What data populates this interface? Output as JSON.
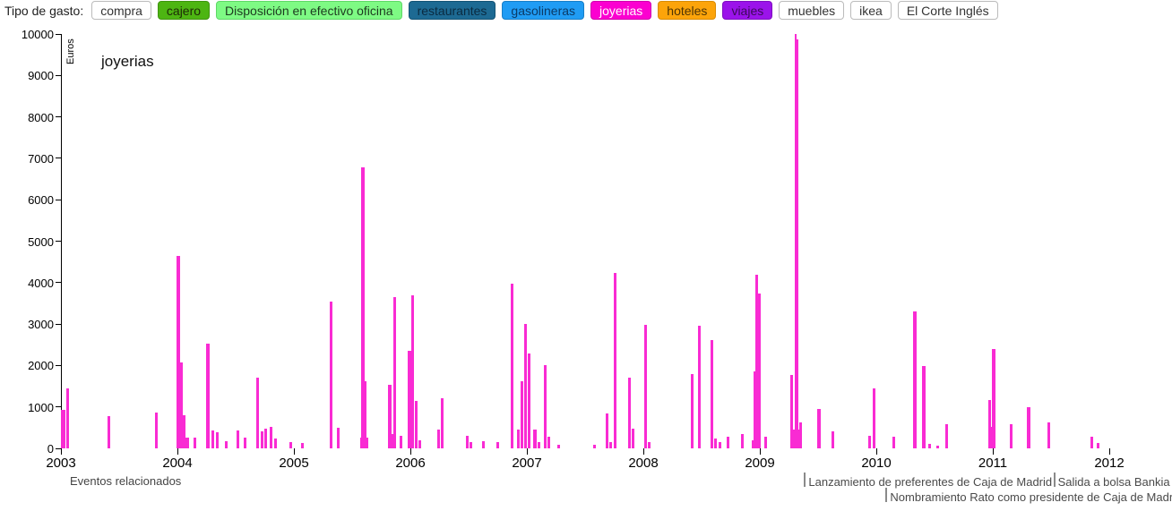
{
  "toolbar": {
    "label": "Tipo de gasto:",
    "buttons": [
      {
        "label": "compra",
        "bg": "#ffffff",
        "fg": "#333333",
        "border": "#bbbbbb"
      },
      {
        "label": "cajero",
        "bg": "#4db512",
        "fg": "#1d2a07",
        "border": "#3f9410"
      },
      {
        "label": "Disposición en efectivo oficina",
        "bg": "#7efa84",
        "fg": "#1d3a1f",
        "border": "#5fd867"
      },
      {
        "label": "restaurantes",
        "bg": "#1d6a93",
        "fg": "#0a2b41",
        "border": "#155474"
      },
      {
        "label": "gasolineras",
        "bg": "#209cf4",
        "fg": "#0b3a66",
        "border": "#1a7ec6"
      },
      {
        "label": "joyerias",
        "bg": "#fb00d0",
        "fg": "#ffffff",
        "border": "#d000ad"
      },
      {
        "label": "hoteles",
        "bg": "#fca40a",
        "fg": "#503503",
        "border": "#d98c06"
      },
      {
        "label": "viajes",
        "bg": "#9b13ea",
        "fg": "#3c0a59",
        "border": "#7f0fc0"
      },
      {
        "label": "muebles",
        "bg": "#ffffff",
        "fg": "#333333",
        "border": "#bbbbbb"
      },
      {
        "label": "ikea",
        "bg": "#ffffff",
        "fg": "#333333",
        "border": "#bbbbbb"
      },
      {
        "label": "El Corte Inglés",
        "bg": "#ffffff",
        "fg": "#333333",
        "border": "#bbbbbb"
      }
    ]
  },
  "chart_data": {
    "type": "bar",
    "title": "joyerias",
    "ylabel": "Euros",
    "xlabel": "",
    "ylim": [
      0,
      10000
    ],
    "yticks": [
      0,
      1000,
      2000,
      3000,
      4000,
      5000,
      6000,
      7000,
      8000,
      9000,
      10000
    ],
    "xticks": [
      2003,
      2004,
      2005,
      2006,
      2007,
      2008,
      2009,
      2010,
      2011,
      2012
    ],
    "grid": false,
    "legend": false,
    "bar_color": "#f92bd3",
    "points_format": "[year_fraction, euros, bar_width_px]",
    "points": [
      [
        2003.02,
        930,
        5
      ],
      [
        2003.055,
        1450,
        3
      ],
      [
        2003.41,
        780,
        3
      ],
      [
        2003.82,
        860,
        3
      ],
      [
        2004.01,
        4650,
        4
      ],
      [
        2004.035,
        2080,
        3
      ],
      [
        2004.06,
        790,
        3
      ],
      [
        2004.08,
        250,
        6
      ],
      [
        2004.15,
        260,
        3
      ],
      [
        2004.26,
        2520,
        4
      ],
      [
        2004.3,
        430,
        3
      ],
      [
        2004.34,
        390,
        3
      ],
      [
        2004.42,
        180,
        3
      ],
      [
        2004.52,
        430,
        3
      ],
      [
        2004.58,
        250,
        3
      ],
      [
        2004.69,
        1700,
        3
      ],
      [
        2004.73,
        400,
        3
      ],
      [
        2004.76,
        470,
        3
      ],
      [
        2004.8,
        520,
        3
      ],
      [
        2004.84,
        240,
        3
      ],
      [
        2004.97,
        160,
        3
      ],
      [
        2005.07,
        120,
        3
      ],
      [
        2005.32,
        3550,
        3
      ],
      [
        2005.38,
        490,
        3
      ],
      [
        2005.595,
        6780,
        4
      ],
      [
        2005.615,
        1630,
        3
      ],
      [
        2005.6,
        250,
        9
      ],
      [
        2005.82,
        1530,
        4
      ],
      [
        2005.85,
        350,
        3
      ],
      [
        2005.865,
        3640,
        3
      ],
      [
        2005.92,
        310,
        3
      ],
      [
        2005.99,
        2360,
        4
      ],
      [
        2006.02,
        3700,
        3
      ],
      [
        2006.05,
        1150,
        3
      ],
      [
        2006.08,
        200,
        3
      ],
      [
        2006.24,
        450,
        3
      ],
      [
        2006.27,
        1210,
        3
      ],
      [
        2006.49,
        300,
        3
      ],
      [
        2006.52,
        150,
        3
      ],
      [
        2006.63,
        180,
        3
      ],
      [
        2006.75,
        150,
        3
      ],
      [
        2006.875,
        3980,
        3
      ],
      [
        2006.93,
        450,
        3
      ],
      [
        2006.955,
        1630,
        3
      ],
      [
        2006.99,
        3010,
        3
      ],
      [
        2007.02,
        2300,
        3
      ],
      [
        2007.07,
        450,
        4
      ],
      [
        2007.1,
        150,
        3
      ],
      [
        2007.16,
        2000,
        3
      ],
      [
        2007.19,
        280,
        3
      ],
      [
        2007.27,
        80,
        3
      ],
      [
        2007.58,
        80,
        3
      ],
      [
        2007.69,
        840,
        3
      ],
      [
        2007.72,
        150,
        3
      ],
      [
        2007.755,
        4230,
        3
      ],
      [
        2007.88,
        1710,
        3
      ],
      [
        2007.91,
        475,
        3
      ],
      [
        2008.02,
        2980,
        3
      ],
      [
        2008.05,
        160,
        3
      ],
      [
        2008.42,
        1790,
        3
      ],
      [
        2008.48,
        2960,
        3
      ],
      [
        2008.585,
        2610,
        3
      ],
      [
        2008.62,
        240,
        3
      ],
      [
        2008.655,
        150,
        3
      ],
      [
        2008.73,
        290,
        3
      ],
      [
        2008.85,
        350,
        3
      ],
      [
        2008.955,
        1860,
        3
      ],
      [
        2008.975,
        4200,
        3
      ],
      [
        2008.995,
        3730,
        4
      ],
      [
        2008.97,
        200,
        10
      ],
      [
        2009.05,
        280,
        3
      ],
      [
        2009.27,
        1780,
        3
      ],
      [
        2009.305,
        9990,
        2
      ],
      [
        2009.315,
        9870,
        4
      ],
      [
        2009.32,
        450,
        9
      ],
      [
        2009.35,
        620,
        3
      ],
      [
        2009.51,
        960,
        4
      ],
      [
        2009.63,
        400,
        3
      ],
      [
        2009.94,
        300,
        3
      ],
      [
        2009.98,
        1450,
        3
      ],
      [
        2010.15,
        280,
        3
      ],
      [
        2010.33,
        3300,
        4
      ],
      [
        2010.41,
        1990,
        4
      ],
      [
        2010.46,
        100,
        3
      ],
      [
        2010.53,
        60,
        3
      ],
      [
        2010.6,
        580,
        3
      ],
      [
        2010.97,
        1170,
        3
      ],
      [
        2010.985,
        520,
        6
      ],
      [
        2011.01,
        2400,
        4
      ],
      [
        2011.16,
        580,
        3
      ],
      [
        2011.31,
        990,
        4
      ],
      [
        2011.48,
        620,
        3
      ],
      [
        2011.85,
        280,
        3
      ],
      [
        2011.9,
        120,
        3
      ]
    ],
    "events_label": "Eventos relacionados",
    "events": [
      {
        "year": 2009.38,
        "label": "Lanzamiento de preferentes de Caja de Madrid",
        "row": 1
      },
      {
        "year": 2010.08,
        "label": "Nombramiento Rato como presidente de Caja de Madrid",
        "row": 2
      },
      {
        "year": 2011.52,
        "label": "Salida a bolsa Bankia",
        "row": 1
      }
    ]
  }
}
